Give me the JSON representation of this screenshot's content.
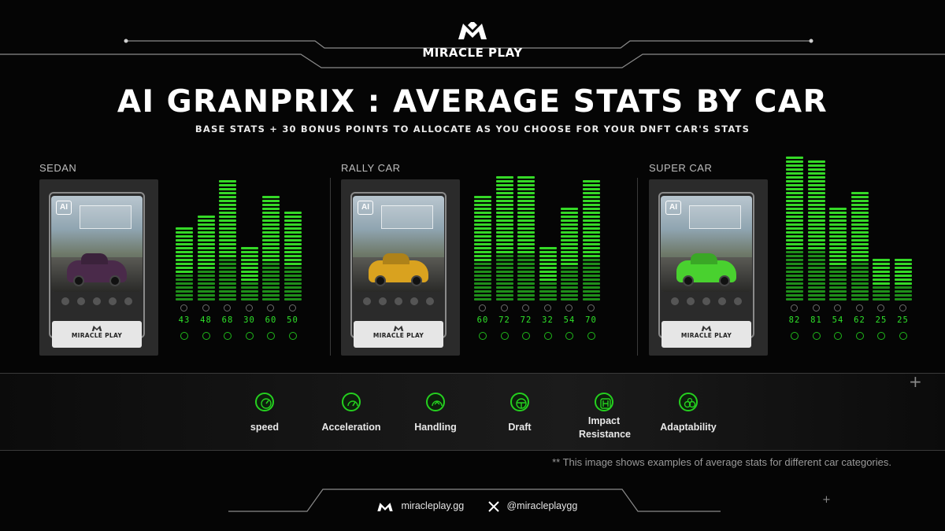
{
  "brand": {
    "name": "MIRACLE PLAY"
  },
  "title": "AI GRANPRIX :  AVERAGE STATS BY CAR",
  "subtitle": "BASE STATS + 30 BONUS POINTS TO ALLOCATE AS YOU CHOOSE FOR YOUR DNFT CAR'S STATS",
  "cars": [
    {
      "label": "SEDAN",
      "car_color": "#4a2a4a",
      "stats": [
        43,
        48,
        68,
        30,
        60,
        50
      ]
    },
    {
      "label": "RALLY CAR",
      "car_color": "#d9a21f",
      "stats": [
        60,
        72,
        72,
        32,
        54,
        70
      ]
    },
    {
      "label": "SUPER CAR",
      "car_color": "#49d12f",
      "stats": [
        82,
        81,
        54,
        62,
        25,
        25
      ]
    }
  ],
  "card_plate_text": "MIRACLE PLAY",
  "card_sign_text": "AI",
  "stats_legend": [
    {
      "icon": "speedometer-icon",
      "label": "speed"
    },
    {
      "icon": "acceleration-gauge-icon",
      "label": "Acceleration"
    },
    {
      "icon": "handling-gauge-icon",
      "label": "Handling"
    },
    {
      "icon": "steering-wheel-icon",
      "label": "Draft"
    },
    {
      "icon": "gear-shift-icon",
      "label": "Impact Resistance"
    },
    {
      "icon": "adaptability-icon",
      "label": "Adaptability"
    }
  ],
  "note": "** This image shows examples of average stats for different car categories.",
  "footer": {
    "website": "miracleplay.gg",
    "x_handle": "@miracleplaygg"
  },
  "colors": {
    "accent": "#35d927",
    "background": "#050505"
  }
}
